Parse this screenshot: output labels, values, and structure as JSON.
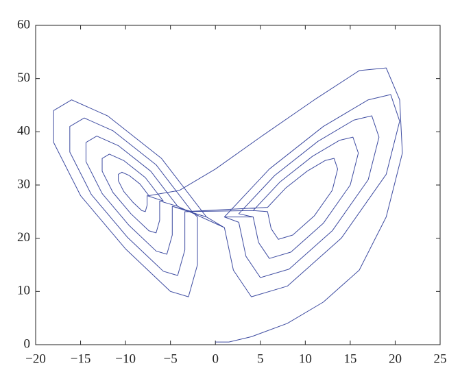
{
  "chart_data": {
    "type": "line",
    "xlim": [
      -20,
      25
    ],
    "xticks": [
      {
        "value": -20,
        "label": "−20"
      },
      {
        "value": -15,
        "label": "−15"
      },
      {
        "value": -10,
        "label": "−10"
      },
      {
        "value": -5,
        "label": "−5"
      },
      0,
      5,
      10,
      15,
      20,
      25
    ],
    "ylim": [
      0,
      60
    ],
    "yticks": [
      0,
      10,
      20,
      30,
      40,
      50,
      60
    ],
    "grid": false,
    "series": [
      {
        "color": "#3c4aa0",
        "x": [
          0,
          1.5,
          4,
          8,
          12,
          16,
          19,
          20.8,
          20.5,
          19,
          16,
          11,
          5,
          0,
          -4,
          -7.4,
          -8.4,
          -9.6,
          -10.4,
          -10.8,
          -10.8,
          -10.2,
          -9.2,
          -8.2,
          -7.8,
          -7.6,
          -7.6,
          -5.8,
          -7.8,
          -10.2,
          -11.8,
          -12.6,
          -12.6,
          -11.4,
          -9.4,
          -7.4,
          -6.6,
          -6.2,
          -6.2,
          -4.2,
          -7.2,
          -10.8,
          -13.2,
          -14.4,
          -14.4,
          -12.6,
          -9.6,
          -6.6,
          -5.4,
          -4.8,
          -4.8,
          -2.6,
          -6.6,
          -11.4,
          -14.6,
          -16.2,
          -16.2,
          -13.8,
          -9.8,
          -5.8,
          -4.2,
          -3.4,
          -3.4,
          5.8,
          7.8,
          10.2,
          12.2,
          13.2,
          13.6,
          13,
          11,
          8.6,
          7,
          6.2,
          5.8,
          4.2,
          7.2,
          10.8,
          13.8,
          15.3,
          15.9,
          15,
          12,
          8.4,
          6,
          4.8,
          4.2,
          2.6,
          6.6,
          11.4,
          15.4,
          17.4,
          18.2,
          17,
          13,
          8.2,
          5,
          3.4,
          2.6,
          1,
          6,
          12,
          17,
          19.5,
          20.5,
          19,
          14,
          8,
          4,
          2,
          1,
          -1,
          -6,
          -12,
          -16,
          -18,
          -18,
          -15,
          -10,
          -5,
          -3,
          -2,
          -2,
          -2.6,
          -6.6,
          -11.4,
          -14.6,
          -16.2,
          -16.2,
          -13.8,
          -9.8,
          -5.8,
          -4.2,
          -3.4,
          -3.4,
          4.2,
          7.2,
          10.8,
          13.8,
          15.3,
          15.9,
          15,
          12,
          8.4,
          6,
          4.8,
          4.2,
          1,
          6,
          12,
          17,
          19.5,
          20.5,
          19,
          14,
          8,
          4,
          2,
          1,
          -4.2,
          -7.2,
          -10.8,
          -13.2,
          -14.4,
          -14.4,
          -12.6,
          -9.6,
          -6.6,
          -5.4,
          -4.8,
          -4.8,
          -1,
          -6,
          -12,
          -16,
          -18,
          -18,
          -15,
          -10,
          -5,
          -3,
          -2,
          -2
        ],
        "values": [
          0.5,
          0.5,
          1.5,
          4,
          8,
          14,
          24,
          36,
          46,
          52,
          51.5,
          46,
          39,
          33,
          29,
          28,
          30.2,
          31.8,
          32.4,
          32,
          30.8,
          28.8,
          26.8,
          25.2,
          25,
          26.2,
          28,
          27,
          31.4,
          34.6,
          35.8,
          35,
          32.6,
          28.6,
          24.6,
          21.4,
          21,
          23.4,
          27,
          26,
          32.6,
          37.4,
          39.2,
          38,
          34.4,
          28.4,
          22.4,
          17.6,
          17,
          20.6,
          26,
          25,
          33.8,
          40.2,
          42.6,
          41,
          36.2,
          28.2,
          20.2,
          13.8,
          13,
          17.8,
          25,
          25.8,
          29.4,
          32.6,
          34.6,
          35,
          33,
          29,
          24.2,
          20.6,
          19.8,
          21.8,
          25,
          25.2,
          30.6,
          35.4,
          38.4,
          39,
          36,
          30,
          22.8,
          17.4,
          16.2,
          19.2,
          24,
          24.6,
          31.8,
          38.2,
          42.2,
          43,
          39,
          31,
          21.4,
          14.2,
          12.6,
          16.6,
          23,
          24,
          33,
          41,
          46,
          47,
          42,
          32,
          20,
          11,
          9,
          14,
          22,
          24,
          35,
          43,
          46,
          44,
          38,
          28,
          18,
          10,
          9,
          15,
          24,
          25,
          33.8,
          40.2,
          42.6,
          41,
          36.2,
          28.2,
          20.2,
          13.8,
          13,
          17.8,
          25,
          25.2,
          30.6,
          35.4,
          38.4,
          39,
          36,
          30,
          22.8,
          17.4,
          16.2,
          19.2,
          24,
          24,
          33,
          41,
          46,
          47,
          42,
          32,
          20,
          11,
          9,
          14,
          22,
          26,
          32.6,
          37.4,
          39.2,
          38,
          34.4,
          28.4,
          22.4,
          17.6,
          17,
          20.6,
          26,
          24,
          35,
          43,
          46,
          44,
          38,
          28,
          18,
          10,
          9,
          15,
          24
        ]
      }
    ]
  }
}
